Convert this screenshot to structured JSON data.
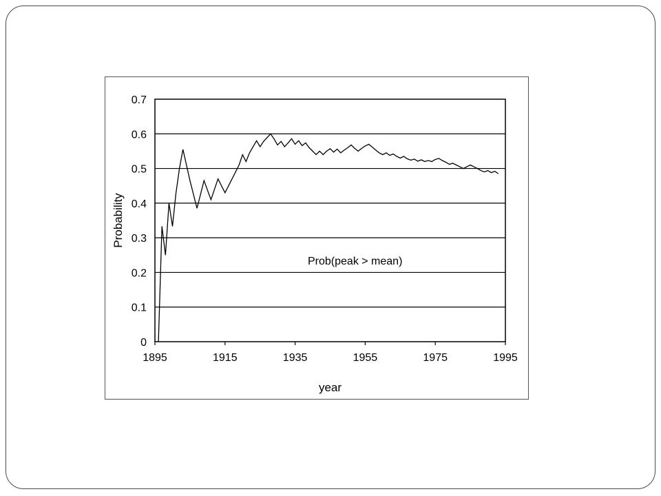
{
  "chart_data": {
    "type": "line",
    "title": "",
    "xlabel": "year",
    "ylabel": "Probability",
    "xlim": [
      1895,
      1995
    ],
    "ylim": [
      0,
      0.7
    ],
    "x_ticks": [
      1895,
      1915,
      1935,
      1955,
      1975,
      1995
    ],
    "y_ticks": [
      0,
      0.1,
      0.2,
      0.3,
      0.4,
      0.5,
      0.6,
      0.7
    ],
    "y_tick_labels": [
      "0",
      "0.1",
      "0.2",
      "0.3",
      "0.4",
      "0.5",
      "0.6",
      "0.7"
    ],
    "grid": "horizontal",
    "legend": "none",
    "annotation": "Prob(peak > mean)",
    "series": [
      {
        "color": "#000000",
        "x": [
          1896,
          1897,
          1898,
          1899,
          1900,
          1901,
          1902,
          1903,
          1905,
          1907,
          1909,
          1911,
          1913,
          1915,
          1917,
          1919,
          1920,
          1921,
          1922,
          1924,
          1925,
          1926,
          1928,
          1929,
          1930,
          1931,
          1932,
          1933,
          1934,
          1935,
          1936,
          1937,
          1938,
          1939,
          1940,
          1941,
          1942,
          1943,
          1944,
          1945,
          1946,
          1947,
          1948,
          1949,
          1950,
          1951,
          1952,
          1953,
          1954,
          1955,
          1956,
          1957,
          1958,
          1959,
          1960,
          1961,
          1962,
          1963,
          1964,
          1965,
          1966,
          1967,
          1968,
          1969,
          1970,
          1971,
          1972,
          1973,
          1974,
          1975,
          1976,
          1977,
          1978,
          1979,
          1980,
          1981,
          1982,
          1983,
          1984,
          1985,
          1986,
          1987,
          1988,
          1989,
          1990,
          1991,
          1992,
          1993
        ],
        "y": [
          0.0,
          0.333,
          0.25,
          0.4,
          0.333,
          0.428,
          0.5,
          0.555,
          0.465,
          0.385,
          0.465,
          0.41,
          0.47,
          0.43,
          0.47,
          0.51,
          0.54,
          0.52,
          0.545,
          0.58,
          0.563,
          0.578,
          0.6,
          0.585,
          0.568,
          0.578,
          0.563,
          0.574,
          0.586,
          0.57,
          0.58,
          0.566,
          0.574,
          0.56,
          0.55,
          0.54,
          0.55,
          0.54,
          0.55,
          0.557,
          0.547,
          0.556,
          0.545,
          0.553,
          0.56,
          0.568,
          0.558,
          0.55,
          0.558,
          0.565,
          0.57,
          0.562,
          0.553,
          0.545,
          0.54,
          0.545,
          0.538,
          0.542,
          0.535,
          0.53,
          0.535,
          0.528,
          0.524,
          0.527,
          0.521,
          0.525,
          0.52,
          0.523,
          0.52,
          0.526,
          0.529,
          0.523,
          0.518,
          0.512,
          0.515,
          0.51,
          0.505,
          0.5,
          0.505,
          0.51,
          0.505,
          0.5,
          0.494,
          0.49,
          0.494,
          0.488,
          0.492,
          0.485
        ]
      }
    ]
  }
}
